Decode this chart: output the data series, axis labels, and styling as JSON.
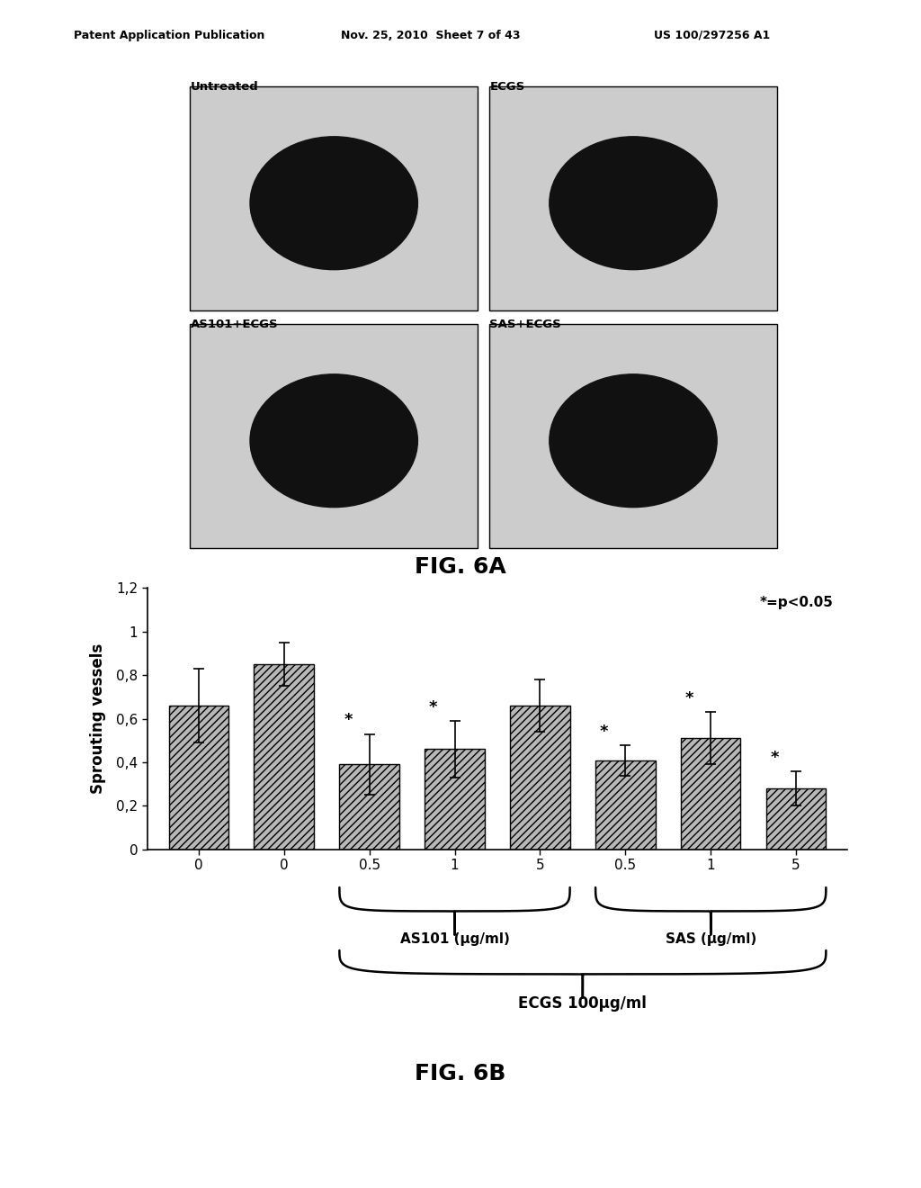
{
  "header_left": "Patent Application Publication",
  "header_mid": "Nov. 25, 2010  Sheet 7 of 43",
  "header_right": "US 100/297256 A1",
  "fig6a_label": "FIG. 6A",
  "fig6b_label": "FIG. 6B",
  "bar_labels": [
    "0",
    "0",
    "0.5",
    "1",
    "5",
    "0.5",
    "1",
    "5"
  ],
  "bar_values": [
    0.66,
    0.85,
    0.39,
    0.46,
    0.66,
    0.41,
    0.51,
    0.28
  ],
  "bar_errors": [
    0.17,
    0.1,
    0.14,
    0.13,
    0.12,
    0.07,
    0.12,
    0.08
  ],
  "significant": [
    false,
    false,
    true,
    true,
    false,
    true,
    true,
    true
  ],
  "ylabel": "Sprouting vessels",
  "ylim": [
    0,
    1.2
  ],
  "yticks": [
    0,
    0.2,
    0.4,
    0.6,
    0.8,
    1,
    1.2
  ],
  "ytick_labels": [
    "0",
    "0,2",
    "0,4",
    "0,6",
    "0,8",
    "1",
    "1,2"
  ],
  "significance_note": "*=p<0.05",
  "as101_label": "AS101 (µg/ml)",
  "sas_label": "SAS (µg/ml)",
  "ecgs_label": "ECGS 100µg/ml",
  "panel_labels_6a": [
    "Untreated",
    "ECGS",
    "AS101+ECGS",
    "SAS+ECGS"
  ],
  "background_color": "#ffffff",
  "bar_color": "#b8b8b8",
  "bar_edge_color": "#000000"
}
